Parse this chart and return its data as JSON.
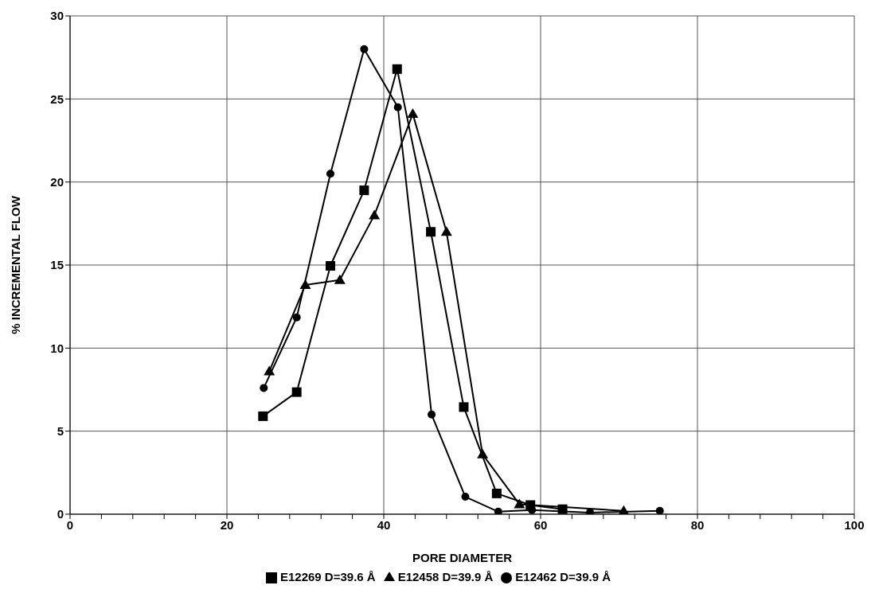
{
  "chart_data": {
    "type": "line",
    "xlabel": "PORE DIAMETER",
    "ylabel": "% INCREMENTAL FLOW",
    "xlim": [
      0,
      100
    ],
    "ylim": [
      0,
      30
    ],
    "xticks": [
      0,
      {
        "value": 4,
        "label": null
      },
      {
        "value": 8,
        "label": null
      },
      {
        "value": 12,
        "label": null
      },
      {
        "value": 16,
        "label": null
      },
      20,
      {
        "value": 24,
        "label": null
      },
      {
        "value": 28,
        "label": null
      },
      {
        "value": 32,
        "label": null
      },
      {
        "value": 36,
        "label": null
      },
      40,
      {
        "value": 44,
        "label": null
      },
      {
        "value": 48,
        "label": null
      },
      {
        "value": 52,
        "label": null
      },
      {
        "value": 56,
        "label": null
      },
      60,
      {
        "value": 64,
        "label": null
      },
      {
        "value": 68,
        "label": null
      },
      {
        "value": 72,
        "label": null
      },
      {
        "value": 76,
        "label": null
      },
      80,
      {
        "value": 84,
        "label": null
      },
      {
        "value": 88,
        "label": null
      },
      {
        "value": 92,
        "label": null
      },
      {
        "value": 96,
        "label": null
      },
      100
    ],
    "yticks": [
      0,
      5,
      10,
      15,
      20,
      25,
      30
    ],
    "grid": true,
    "legend": "bottom",
    "line_style": "solid",
    "series": [
      {
        "name": "E12462 D=39.9 Å",
        "color": "#000000",
        "marker": "circle",
        "x": [
          24.7,
          28.9,
          33.2,
          37.5,
          41.8,
          46.1,
          50.4,
          54.6,
          58.9,
          66.3,
          75.2
        ],
        "values": [
          7.6,
          11.85,
          20.5,
          28.0,
          24.5,
          6.0,
          1.05,
          0.15,
          0.25,
          0.1,
          0.2
        ]
      },
      {
        "name": "E12269 D=39.6 Å",
        "color": "#000000",
        "marker": "square",
        "x": [
          24.6,
          28.9,
          33.2,
          37.5,
          41.7,
          46.0,
          50.2,
          54.4,
          58.7,
          62.8
        ],
        "values": [
          5.9,
          7.35,
          14.95,
          19.5,
          26.8,
          17.0,
          6.45,
          1.25,
          0.55,
          0.3
        ]
      },
      {
        "name": "E12458 D=39.9 Å",
        "color": "#000000",
        "marker": "triangle",
        "x": [
          25.4,
          30.0,
          34.4,
          38.8,
          43.7,
          48.0,
          52.6,
          57.3,
          70.6
        ],
        "values": [
          8.6,
          13.8,
          14.1,
          18.0,
          24.1,
          17.0,
          3.6,
          0.6,
          0.2
        ]
      }
    ]
  }
}
